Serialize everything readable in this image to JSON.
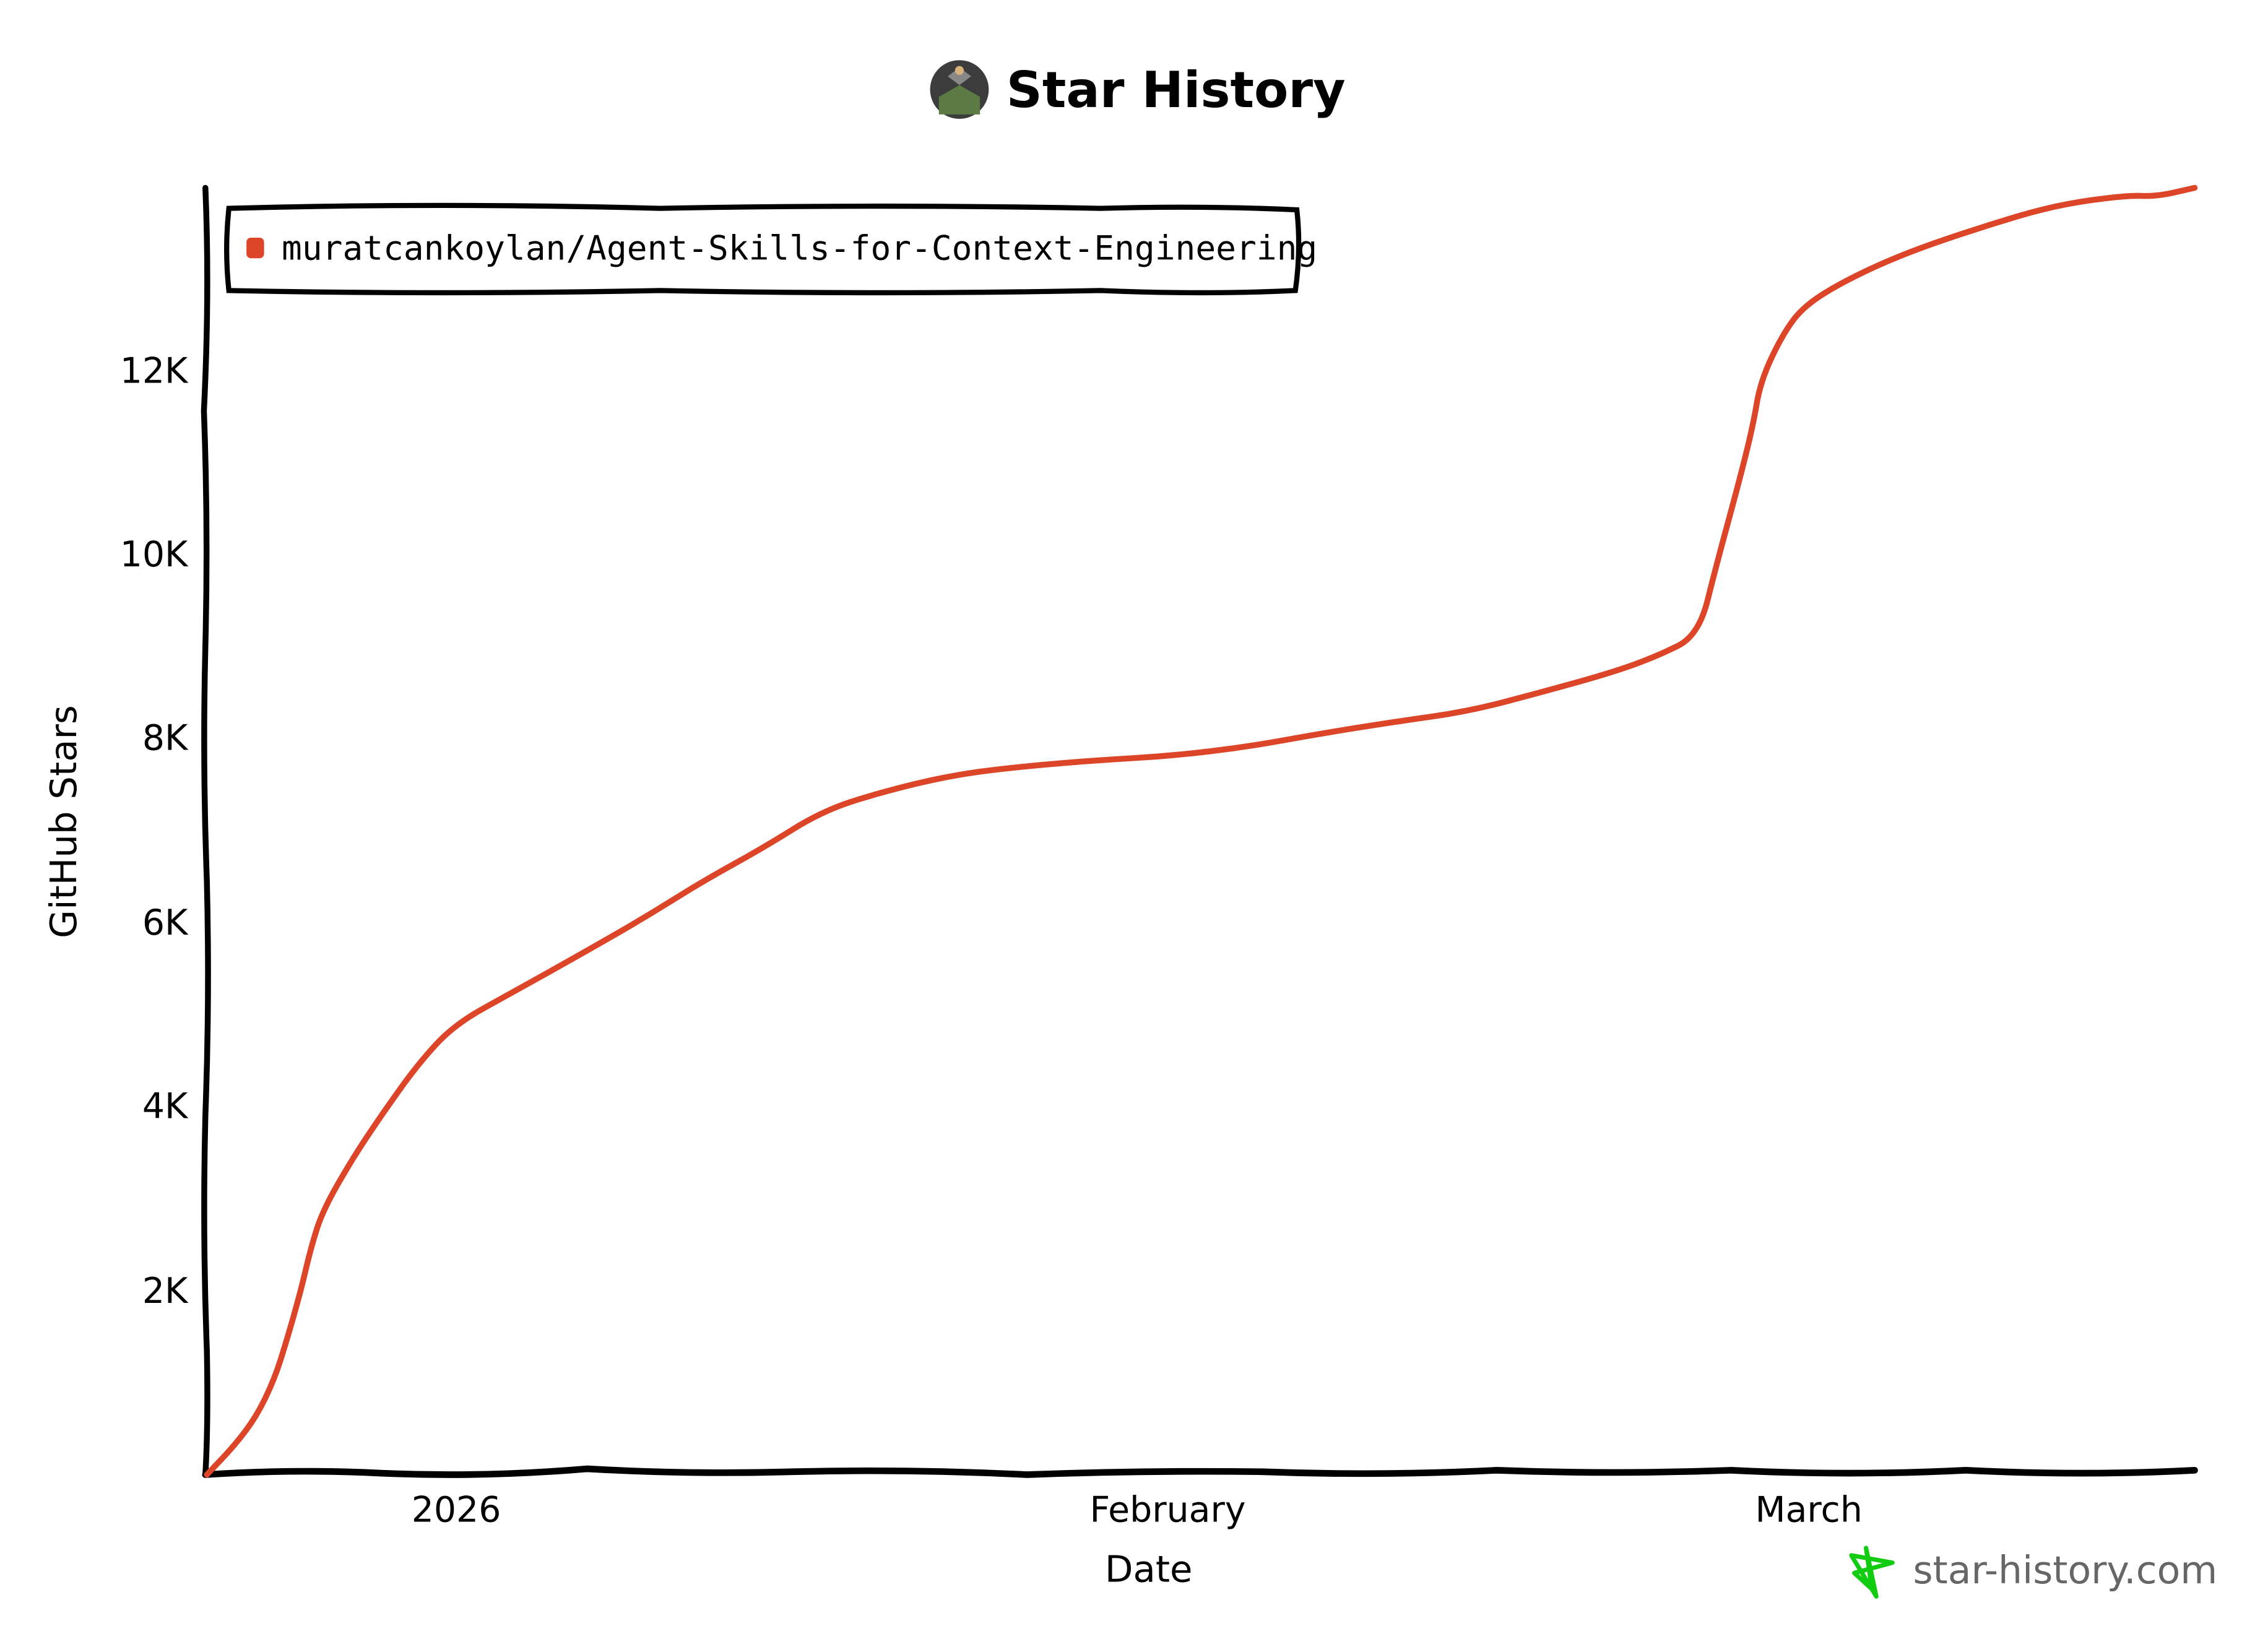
{
  "header": {
    "title": "Star History",
    "logo_icon": "repo-owner-avatar-icon"
  },
  "legend": {
    "items": [
      {
        "label": "muratcankoylan/Agent-Skills-for-Context-Engineering",
        "color": "#dd4528"
      }
    ]
  },
  "axes": {
    "x_title": "Date",
    "y_title": "GitHub Stars",
    "x_ticks": [
      "2026",
      "February",
      "March"
    ],
    "y_ticks": [
      "2K",
      "4K",
      "6K",
      "8K",
      "10K",
      "12K"
    ]
  },
  "watermark": {
    "text": "star-history.com",
    "icon": "star-outline-icon",
    "icon_color": "#11cc11"
  },
  "colors": {
    "line": "#dd4528",
    "axis": "#000000",
    "watermark_text": "#666666"
  },
  "chart_data": {
    "type": "line",
    "title": "Star History",
    "xlabel": "Date",
    "ylabel": "GitHub Stars",
    "x_tick_labels": [
      "2026",
      "February",
      "March"
    ],
    "y_tick_labels": [
      "2K",
      "4K",
      "6K",
      "8K",
      "10K",
      "12K"
    ],
    "ylim": [
      0,
      14000
    ],
    "grid": false,
    "legend_position": "top-left",
    "series": [
      {
        "name": "muratcankoylan/Agent-Skills-for-Context-Engineering",
        "color": "#dd4528",
        "x": [
          "2025-12-22",
          "2025-12-24",
          "2025-12-25",
          "2025-12-26",
          "2025-12-28",
          "2026-01-01",
          "2026-01-06",
          "2026-01-13",
          "2026-01-18",
          "2026-01-24",
          "2026-02-01",
          "2026-02-07",
          "2026-02-13",
          "2026-02-19",
          "2026-02-23",
          "2026-02-25",
          "2026-02-26",
          "2026-02-28",
          "2026-03-04",
          "2026-03-11",
          "2026-03-17"
        ],
        "values": [
          0,
          640,
          1430,
          2870,
          3900,
          4890,
          5690,
          6800,
          7410,
          7700,
          7810,
          8050,
          8290,
          8720,
          9120,
          10760,
          11870,
          12700,
          13270,
          13780,
          13980
        ]
      }
    ]
  },
  "plot_points": [
    [
      141,
      1005
    ],
    [
      160,
      985
    ],
    [
      175,
      965
    ],
    [
      187,
      940
    ],
    [
      195,
      915
    ],
    [
      205,
      880
    ],
    [
      212,
      850
    ],
    [
      220,
      825
    ],
    [
      240,
      790
    ],
    [
      260,
      760
    ],
    [
      285,
      725
    ],
    [
      310,
      698
    ],
    [
      350,
      676
    ],
    [
      400,
      648
    ],
    [
      440,
      625
    ],
    [
      480,
      600
    ],
    [
      520,
      578
    ],
    [
      560,
      553
    ],
    [
      600,
      540
    ],
    [
      650,
      528
    ],
    [
      700,
      522
    ],
    [
      750,
      518
    ],
    [
      800,
      515
    ],
    [
      850,
      509
    ],
    [
      900,
      500
    ],
    [
      950,
      492
    ],
    [
      1000,
      485
    ],
    [
      1050,
      472
    ],
    [
      1100,
      458
    ],
    [
      1130,
      447
    ],
    [
      1158,
      433
    ],
    [
      1170,
      385
    ],
    [
      1185,
      330
    ],
    [
      1195,
      290
    ],
    [
      1200,
      260
    ],
    [
      1215,
      228
    ],
    [
      1230,
      208
    ],
    [
      1260,
      190
    ],
    [
      1300,
      172
    ],
    [
      1350,
      155
    ],
    [
      1400,
      140
    ],
    [
      1450,
      133
    ],
    [
      1470,
      134
    ],
    [
      1496,
      128
    ]
  ]
}
